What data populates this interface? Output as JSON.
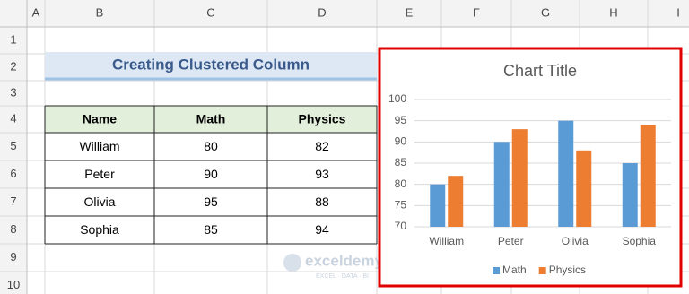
{
  "column_headers": [
    "A",
    "B",
    "C",
    "D",
    "E",
    "F",
    "G",
    "H",
    "I"
  ],
  "row_headers": [
    "1",
    "2",
    "3",
    "4",
    "5",
    "6",
    "7",
    "8",
    "9",
    "10"
  ],
  "heading": "Creating Clustered Column",
  "table": {
    "header": [
      "Name",
      "Math",
      "Physics"
    ],
    "rows": [
      [
        "William",
        80,
        82
      ],
      [
        "Peter",
        90,
        93
      ],
      [
        "Olivia",
        95,
        88
      ],
      [
        "Sophia",
        85,
        94
      ]
    ]
  },
  "chart_data": {
    "type": "bar",
    "title": "Chart Title",
    "categories": [
      "William",
      "Peter",
      "Olivia",
      "Sophia"
    ],
    "series": [
      {
        "name": "Math",
        "color": "#5b9bd5",
        "values": [
          80,
          90,
          95,
          85
        ]
      },
      {
        "name": "Physics",
        "color": "#ed7d31",
        "values": [
          82,
          93,
          88,
          94
        ]
      }
    ],
    "ylim": [
      70,
      100
    ],
    "yticks": [
      70,
      75,
      80,
      85,
      90,
      95,
      100
    ],
    "grid": true,
    "legend": "bottom"
  },
  "watermark": {
    "brand": "exceldemy",
    "tagline": "EXCEL · DATA · BI"
  }
}
